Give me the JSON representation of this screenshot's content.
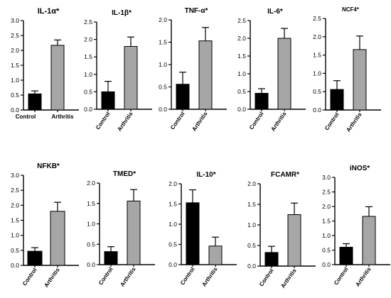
{
  "colors": {
    "control": "#000000",
    "arthritis": "#a6a6a6",
    "axis": "#000000"
  },
  "chart_data": [
    {
      "type": "bar",
      "title": "IL-1α*",
      "categories": [
        "Control",
        "Arthritis"
      ],
      "values": [
        0.54,
        2.17
      ],
      "errors": [
        0.1,
        0.18
      ],
      "ylim": [
        0,
        3.0
      ],
      "yticks": [
        "0.0",
        "0.5",
        "1.0",
        "1.5",
        "2.0",
        "2.5",
        "3.0"
      ],
      "label_style": "horizontal"
    },
    {
      "type": "bar",
      "title": "IL-1β*",
      "categories": [
        "Control",
        "Arthritis"
      ],
      "values": [
        0.5,
        1.8
      ],
      "errors": [
        0.3,
        0.27
      ],
      "ylim": [
        0,
        2.5
      ],
      "yticks": [
        "0.0",
        "0.5",
        "1.0",
        "1.5",
        "2.0",
        "2.5"
      ],
      "label_style": "rotated"
    },
    {
      "type": "bar",
      "title": "TNF-α*",
      "categories": [
        "Control",
        "Arthritis"
      ],
      "values": [
        0.56,
        1.53
      ],
      "errors": [
        0.27,
        0.3
      ],
      "ylim": [
        0,
        2.0
      ],
      "yticks": [
        "0.0",
        "0.5",
        "1.0",
        "1.5",
        "2.0"
      ],
      "label_style": "rotated"
    },
    {
      "type": "bar",
      "title": "IL-6*",
      "categories": [
        "Control",
        "Arthritis"
      ],
      "values": [
        0.45,
        2.0
      ],
      "errors": [
        0.13,
        0.28
      ],
      "ylim": [
        0,
        2.5
      ],
      "yticks": [
        "0.0",
        "0.5",
        "1.0",
        "1.5",
        "2.0",
        "2.5"
      ],
      "label_style": "rotated"
    },
    {
      "type": "bar",
      "title": "NCF4*",
      "categories": [
        "Control",
        "Arthritis"
      ],
      "values": [
        0.56,
        1.65
      ],
      "errors": [
        0.24,
        0.37
      ],
      "ylim": [
        0,
        2.5
      ],
      "yticks": [
        "0.0",
        "0.5",
        "1.0",
        "1.5",
        "2.0",
        "2.5"
      ],
      "label_style": "rotated"
    },
    {
      "type": "bar",
      "title": "NFKB*",
      "categories": [
        "Control",
        "Arthritis"
      ],
      "values": [
        0.47,
        1.8
      ],
      "errors": [
        0.12,
        0.3
      ],
      "ylim": [
        0,
        3.0
      ],
      "yticks": [
        "0.0",
        "0.5",
        "1.0",
        "1.5",
        "2.0",
        "2.5",
        "3.0"
      ],
      "label_style": "rotated"
    },
    {
      "type": "bar",
      "title": "TMED*",
      "categories": [
        "Control",
        "Arthritis"
      ],
      "values": [
        0.32,
        1.56
      ],
      "errors": [
        0.12,
        0.28
      ],
      "ylim": [
        0,
        2.0
      ],
      "yticks": [
        "0.0",
        "0.5",
        "1.0",
        "1.5",
        "2.0"
      ],
      "label_style": "rotated"
    },
    {
      "type": "bar",
      "title": "IL-10*",
      "categories": [
        "Control",
        "Arthritis"
      ],
      "values": [
        1.53,
        0.46
      ],
      "errors": [
        0.32,
        0.22
      ],
      "ylim": [
        0,
        2.0
      ],
      "yticks": [
        "0.0",
        "0.5",
        "1.0",
        "1.5",
        "2.0"
      ],
      "label_style": "rotated"
    },
    {
      "type": "bar",
      "title": "FCAMR*",
      "categories": [
        "Control",
        "Arthritis"
      ],
      "values": [
        0.33,
        1.25
      ],
      "errors": [
        0.15,
        0.28
      ],
      "ylim": [
        0,
        2.0
      ],
      "yticks": [
        "0.0",
        "0.5",
        "1.0",
        "1.5",
        "2.0"
      ],
      "label_style": "rotated"
    },
    {
      "type": "bar",
      "title": "iNOS*",
      "categories": [
        "Control",
        "Arthritis"
      ],
      "values": [
        0.6,
        1.66
      ],
      "errors": [
        0.12,
        0.33
      ],
      "ylim": [
        0,
        3.0
      ],
      "yticks": [
        "0.0",
        "0.5",
        "1.0",
        "1.5",
        "2.0",
        "2.5",
        "3.0"
      ],
      "label_style": "rotated"
    }
  ]
}
